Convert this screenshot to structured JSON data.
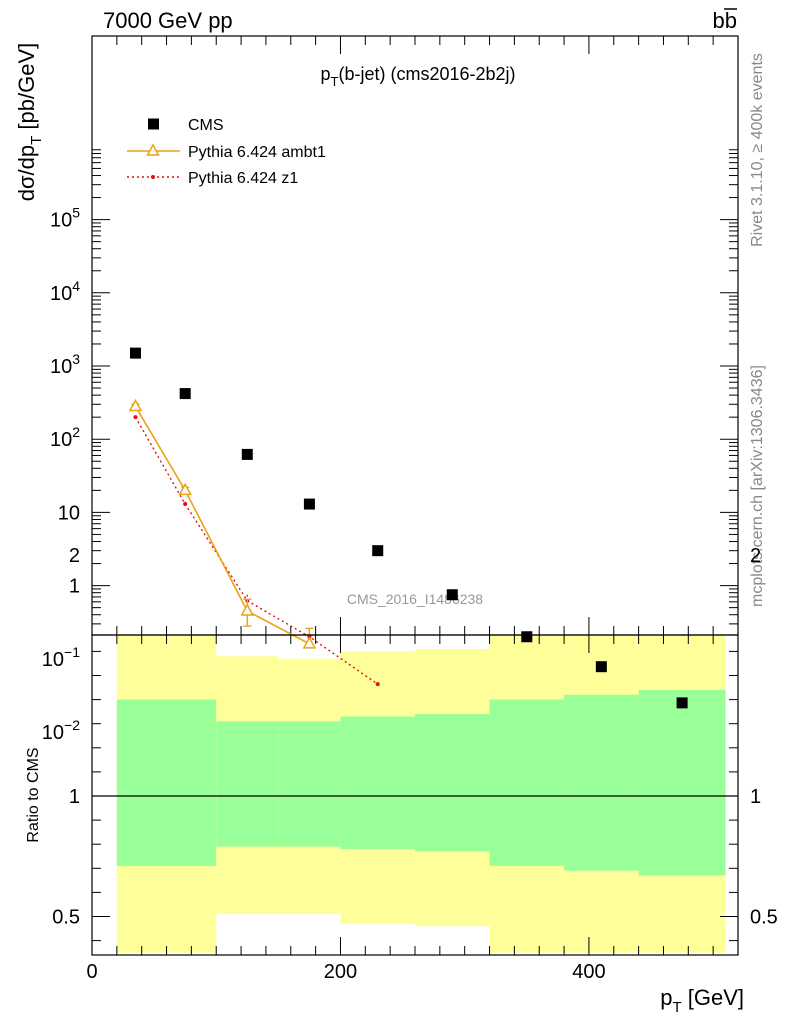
{
  "header": {
    "energy_label": "7000 GeV pp",
    "process_label": "bb",
    "plot_title_main": "p",
    "plot_title_sub": "T",
    "plot_title_rest": "(b-jet) (cms2016-2b2j)",
    "watermark": "CMS_2016_I1486238",
    "side_text_top": "Rivet 3.1.10, ≥ 400k events",
    "side_text_bottom": "mcplots.cern.ch [arXiv:1306.3436]"
  },
  "upper_axis": {
    "ylabel_main": "dσ/dp",
    "ylabel_sub": "T",
    "ylabel_rest": " [pb/GeV]",
    "tick_labels": [
      {
        "value": 100000,
        "base": "10",
        "exp": "5"
      },
      {
        "value": 10000,
        "base": "10",
        "exp": "4"
      },
      {
        "value": 1000,
        "base": "10",
        "exp": "3"
      },
      {
        "value": 100,
        "base": "10",
        "exp": "2"
      },
      {
        "value": 10,
        "base": "10",
        "exp": ""
      },
      {
        "value": 1,
        "base": "1",
        "exp": ""
      },
      {
        "value": 0.1,
        "base": "10",
        "exp": "−1"
      },
      {
        "value": 0.01,
        "base": "10",
        "exp": "−2"
      }
    ]
  },
  "lower_axis": {
    "ylabel": "Ratio to CMS",
    "tick_labels": [
      {
        "value": 2,
        "label": "2"
      },
      {
        "value": 1,
        "label": "1"
      },
      {
        "value": 0.5,
        "label": "0.5"
      }
    ]
  },
  "x_axis": {
    "xlabel_main": "p",
    "xlabel_sub": "T",
    "xlabel_rest": " [GeV]",
    "tick_labels": [
      {
        "value": 0,
        "label": "0"
      },
      {
        "value": 200,
        "label": "200"
      },
      {
        "value": 400,
        "label": "400"
      }
    ]
  },
  "legend": {
    "placement": "top-left",
    "entries": [
      {
        "label": "CMS",
        "style": "square",
        "color": "#000000"
      },
      {
        "label": "Pythia 6.424 ambt1",
        "style": "triangle-line",
        "color": "#e8a317"
      },
      {
        "label": "Pythia 6.424 z1",
        "style": "dotted-dot",
        "color": "#dd1111"
      }
    ]
  },
  "chart_data": {
    "type": "scatter",
    "x_range": [
      0,
      520
    ],
    "y_range_upper": [
      0.001,
      150000
    ],
    "y_scale_upper": "log",
    "y_range_lower": [
      0.35,
      2.3
    ],
    "series": [
      {
        "name": "CMS",
        "color": "#000000",
        "x": [
          35,
          75,
          125,
          175,
          230,
          290,
          350,
          410,
          475
        ],
        "y": [
          1500,
          420,
          62,
          13,
          3.0,
          0.75,
          0.2,
          0.078,
          0.025
        ]
      },
      {
        "name": "Pythia 6.424 ambt1",
        "color": "#e8a317",
        "x": [
          35,
          75,
          125,
          175
        ],
        "y": [
          280,
          20,
          0.45,
          0.16
        ],
        "yerr_low": [
          260,
          18,
          0.28,
          0.045
        ],
        "yerr_high": [
          300,
          22,
          0.65,
          0.26
        ]
      },
      {
        "name": "Pythia 6.424 z1",
        "color": "#dd1111",
        "x": [
          35,
          75,
          125,
          175,
          230
        ],
        "y": [
          200,
          13,
          0.62,
          0.2,
          0.045
        ],
        "yerr_low": [
          190,
          12,
          0.5,
          0.15,
          0.001
        ],
        "yerr_high": [
          210,
          14,
          0.75,
          0.25,
          0.09
        ]
      }
    ],
    "ratio_bands": {
      "bin_edges": [
        20,
        100,
        150,
        200,
        260,
        320,
        380,
        440,
        510
      ],
      "green_low": [
        0.71,
        0.79,
        0.79,
        0.78,
        0.77,
        0.71,
        0.69,
        0.67
      ],
      "green_high": [
        1.4,
        1.31,
        1.31,
        1.33,
        1.34,
        1.4,
        1.42,
        1.44
      ],
      "yellow_low": [
        0.35,
        0.51,
        0.51,
        0.47,
        0.46,
        0.35,
        0.35,
        0.35
      ],
      "yellow_high": [
        1.72,
        1.58,
        1.57,
        1.6,
        1.61,
        1.72,
        1.75,
        1.78
      ],
      "green_color": "#99ff99",
      "yellow_color": "#ffff99"
    }
  }
}
